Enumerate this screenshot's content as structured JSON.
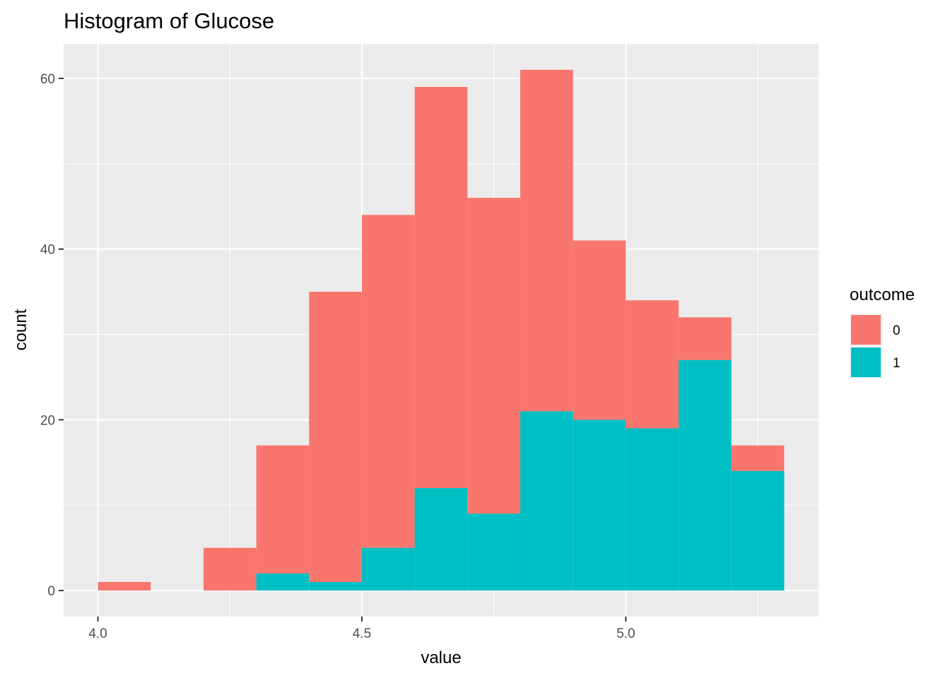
{
  "chart_data": {
    "type": "bar",
    "subtype": "stacked-histogram",
    "title": "Histogram of Glucose",
    "xlabel": "value",
    "ylabel": "count",
    "bin_width": 0.1,
    "bins_start": [
      4.0,
      4.1,
      4.2,
      4.3,
      4.4,
      4.5,
      4.6,
      4.7,
      4.8,
      4.9,
      5.0,
      5.1,
      5.2
    ],
    "xlim": [
      3.935,
      5.365
    ],
    "ylim": [
      -3.05,
      64.05
    ],
    "x_ticks": [
      4.0,
      4.5,
      5.0
    ],
    "x_tick_labels": [
      "4.0",
      "4.5",
      "5.0"
    ],
    "x_minor_ticks": [
      4.25,
      4.75,
      5.25
    ],
    "y_ticks": [
      0,
      20,
      40,
      60
    ],
    "y_tick_labels": [
      "0",
      "20",
      "40",
      "60"
    ],
    "y_minor_ticks": [
      10,
      30,
      50
    ],
    "grid": true,
    "panel_background": "#ebebeb",
    "legend": {
      "title": "outcome",
      "position": "right",
      "entries": [
        "0",
        "1"
      ]
    },
    "series": [
      {
        "name": "0",
        "color": "#f8766d",
        "values": [
          1,
          0,
          5,
          15,
          34,
          39,
          47,
          37,
          40,
          21,
          15,
          5,
          3
        ]
      },
      {
        "name": "1",
        "color": "#00bfc4",
        "values": [
          0,
          0,
          0,
          2,
          1,
          5,
          12,
          9,
          21,
          20,
          19,
          27,
          14
        ]
      }
    ]
  }
}
